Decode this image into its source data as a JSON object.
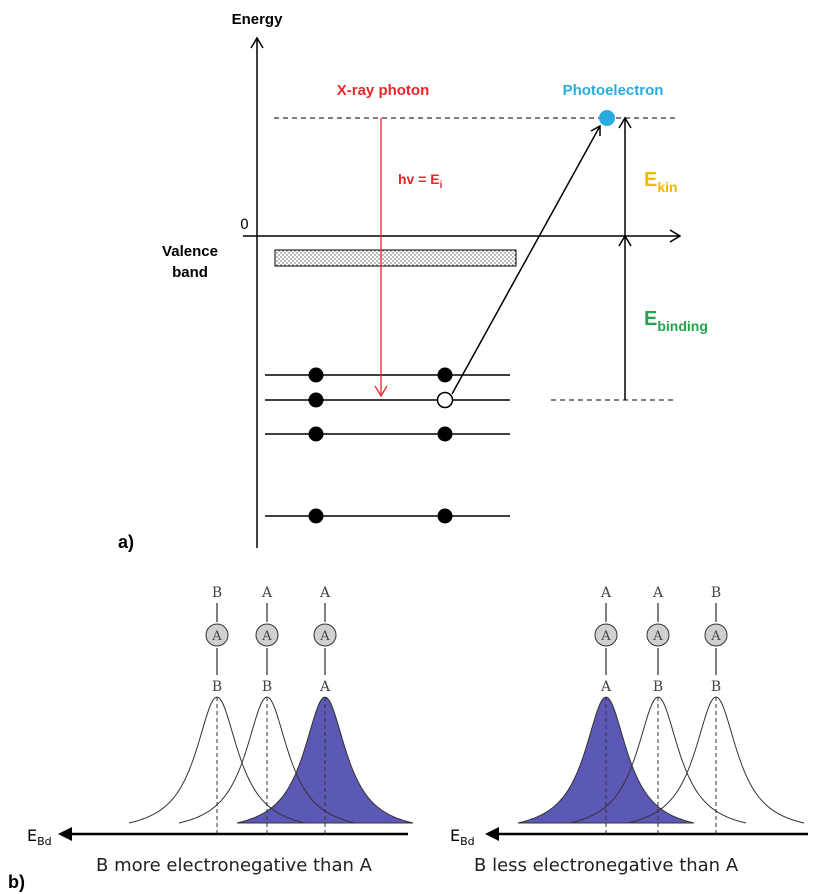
{
  "panel_a": {
    "label": "a)",
    "axis_label": "Energy",
    "zero_label": "0",
    "valence_line1": "Valence",
    "valence_line2": "band",
    "photon_label": "X-ray photon",
    "hv_label": "hv = E",
    "hv_sub": "i",
    "photoelectron_label": "Photoelectron",
    "ekin_main": "E",
    "ekin_sub": "kin",
    "ebinding_main": "E",
    "ebinding_sub": "binding",
    "colors": {
      "photon": "#e8262a",
      "photoelectron": "#29abe2",
      "ekin": "#f5b800",
      "ebinding": "#23a34a"
    }
  },
  "panel_b": {
    "label": "b)",
    "left": {
      "axis_main": "E",
      "axis_sub": "Bd",
      "caption": "B more electronegative than A",
      "molecules": [
        {
          "top": "B",
          "center": "A",
          "bottom": "B",
          "filled": false
        },
        {
          "top": "A",
          "center": "A",
          "bottom": "B",
          "filled": false
        },
        {
          "top": "A",
          "center": "A",
          "bottom": "A",
          "filled": true
        }
      ]
    },
    "right": {
      "axis_main": "E",
      "axis_sub": "Bd",
      "caption": "B less electronegative than A",
      "molecules": [
        {
          "top": "A",
          "center": "A",
          "bottom": "A",
          "filled": true
        },
        {
          "top": "A",
          "center": "A",
          "bottom": "B",
          "filled": false
        },
        {
          "top": "B",
          "center": "A",
          "bottom": "B",
          "filled": false
        }
      ]
    },
    "colors": {
      "peak_fill": "#5b59b5",
      "atom_fill": "#d0d0d0"
    }
  }
}
